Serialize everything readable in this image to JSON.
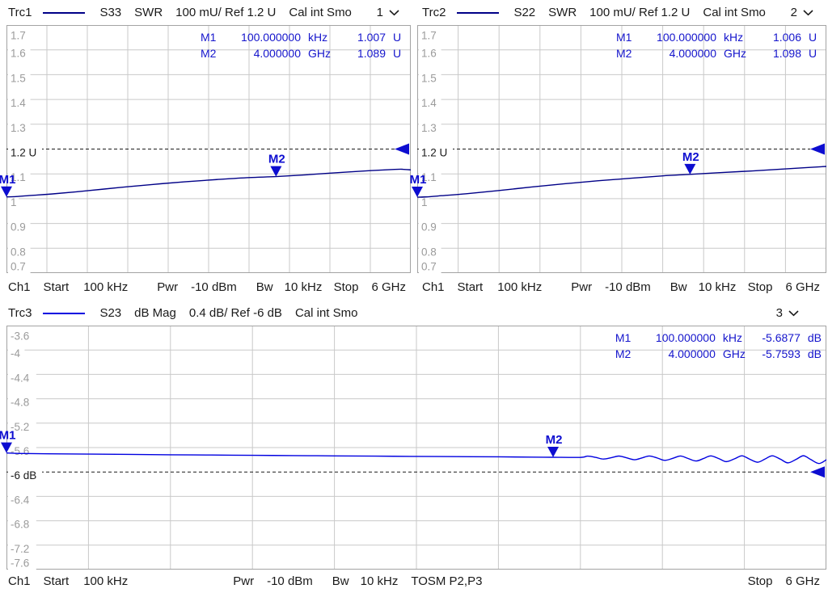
{
  "colors": {
    "grid": "#c9c9c9",
    "plot_border": "#a3a3a3",
    "tick_text": "#9b9b9b",
    "ref_text": "#1a1a1a",
    "marker": "#0d0dd0",
    "readout_text": "#1515cc",
    "header_text": "#1a1a1a"
  },
  "chart_data": [
    {
      "type": "line",
      "color": "#000087",
      "header": {
        "trace": "Trc1",
        "sparam": "S33",
        "format": "SWR",
        "scale": "100 mU/ Ref 1.2 U",
        "cal": "Cal int Smo",
        "channel": "1"
      },
      "axis": {
        "y_max": 1.7,
        "y_min": 0.7,
        "ref_value": 1.2,
        "ref_index": 5,
        "x_divisions": 10,
        "y_ticks": [
          "1.7",
          "1.6",
          "1.5",
          "1.4",
          "1.3",
          "1.2 U",
          "1.1",
          "1",
          "0.9",
          "0.8",
          "0.7"
        ]
      },
      "markers": [
        {
          "label": "M1",
          "freq": "100.000000",
          "freq_unit": "kHz",
          "value": "1.007",
          "value_unit": "U",
          "x": 0,
          "y": 1.007
        },
        {
          "label": "M2",
          "freq": "4.000000",
          "freq_unit": "GHz",
          "value": "1.089",
          "value_unit": "U",
          "x": 0.6667,
          "y": 1.089
        }
      ],
      "trace": {
        "x": [
          0,
          0.02,
          0.06,
          0.12,
          0.2,
          0.28,
          0.36,
          0.44,
          0.52,
          0.6,
          0.6667,
          0.74,
          0.82,
          0.9,
          0.96,
          0.98,
          1.0
        ],
        "y": [
          1.007,
          1.008,
          1.013,
          1.02,
          1.032,
          1.045,
          1.057,
          1.068,
          1.077,
          1.085,
          1.089,
          1.096,
          1.105,
          1.113,
          1.118,
          1.1185,
          1.116
        ]
      },
      "footer": {
        "ch": "Ch1",
        "start_label": "Start",
        "start": "100 kHz",
        "pwr_label": "Pwr",
        "pwr": "-10 dBm",
        "bw_label": "Bw",
        "bw": "10 kHz",
        "stop_label": "Stop",
        "stop": "6 GHz"
      }
    },
    {
      "type": "line",
      "color": "#000087",
      "header": {
        "trace": "Trc2",
        "sparam": "S22",
        "format": "SWR",
        "scale": "100 mU/ Ref 1.2 U",
        "cal": "Cal int Smo",
        "channel": "2"
      },
      "axis": {
        "y_max": 1.7,
        "y_min": 0.7,
        "ref_value": 1.2,
        "ref_index": 5,
        "x_divisions": 10,
        "y_ticks": [
          "1.7",
          "1.6",
          "1.5",
          "1.4",
          "1.3",
          "1.2 U",
          "1.1",
          "1",
          "0.9",
          "0.8",
          "0.7"
        ]
      },
      "markers": [
        {
          "label": "M1",
          "freq": "100.000000",
          "freq_unit": "kHz",
          "value": "1.006",
          "value_unit": "U",
          "x": 0,
          "y": 1.006
        },
        {
          "label": "M2",
          "freq": "4.000000",
          "freq_unit": "GHz",
          "value": "1.098",
          "value_unit": "U",
          "x": 0.6667,
          "y": 1.098
        }
      ],
      "trace": {
        "x": [
          0,
          0.02,
          0.06,
          0.12,
          0.2,
          0.28,
          0.36,
          0.44,
          0.52,
          0.6,
          0.6667,
          0.74,
          0.82,
          0.9,
          0.96,
          1.0
        ],
        "y": [
          1.006,
          1.007,
          1.012,
          1.02,
          1.033,
          1.047,
          1.06,
          1.072,
          1.082,
          1.092,
          1.098,
          1.105,
          1.112,
          1.12,
          1.126,
          1.13
        ]
      },
      "footer": {
        "ch": "Ch1",
        "start_label": "Start",
        "start": "100 kHz",
        "pwr_label": "Pwr",
        "pwr": "-10 dBm",
        "bw_label": "Bw",
        "bw": "10 kHz",
        "stop_label": "Stop",
        "stop": "6 GHz"
      }
    },
    {
      "type": "line",
      "color": "#0000e0",
      "header": {
        "trace": "Trc3",
        "sparam": "S23",
        "format": "dB Mag",
        "scale": "0.4 dB/ Ref -6 dB",
        "cal": "Cal int Smo",
        "channel": "3"
      },
      "axis": {
        "y_max": -3.6,
        "y_min": -7.6,
        "ref_value": -6,
        "ref_index": 6,
        "x_divisions": 10,
        "y_ticks": [
          "-3.6",
          "-4",
          "-4.4",
          "-4.8",
          "-5.2",
          "-5.6",
          "-6 dB",
          "-6.4",
          "-6.8",
          "-7.2",
          "-7.6"
        ]
      },
      "markers": [
        {
          "label": "M1",
          "freq": "100.000000",
          "freq_unit": "kHz",
          "value": "-5.6877",
          "value_unit": "dB",
          "x": 0,
          "y": -5.6877
        },
        {
          "label": "M2",
          "freq": "4.000000",
          "freq_unit": "GHz",
          "value": "-5.7593",
          "value_unit": "dB",
          "x": 0.6667,
          "y": -5.7593
        }
      ],
      "trace": {
        "x": [
          0,
          0.02,
          0.05,
          0.1,
          0.15,
          0.2,
          0.25,
          0.3,
          0.35,
          0.4,
          0.45,
          0.5,
          0.55,
          0.6,
          0.64,
          0.6667,
          0.7,
          0.709,
          0.719,
          0.728,
          0.738,
          0.747,
          0.756,
          0.766,
          0.775,
          0.784,
          0.794,
          0.803,
          0.813,
          0.822,
          0.831,
          0.841,
          0.85,
          0.859,
          0.869,
          0.878,
          0.888,
          0.897,
          0.906,
          0.916,
          0.925,
          0.934,
          0.944,
          0.953,
          0.963,
          0.972,
          0.981,
          0.991,
          1.0
        ],
        "y": [
          -5.688,
          -5.697,
          -5.702,
          -5.707,
          -5.712,
          -5.718,
          -5.722,
          -5.727,
          -5.731,
          -5.736,
          -5.74,
          -5.745,
          -5.748,
          -5.752,
          -5.756,
          -5.759,
          -5.761,
          -5.74,
          -5.762,
          -5.788,
          -5.765,
          -5.739,
          -5.767,
          -5.799,
          -5.77,
          -5.738,
          -5.772,
          -5.809,
          -5.775,
          -5.738,
          -5.777,
          -5.82,
          -5.78,
          -5.737,
          -5.782,
          -5.83,
          -5.784,
          -5.735,
          -5.787,
          -5.84,
          -5.789,
          -5.735,
          -5.791,
          -5.85,
          -5.794,
          -5.734,
          -5.796,
          -5.861,
          -5.799
        ]
      },
      "footer": {
        "ch": "Ch1",
        "start_label": "Start",
        "start": "100 kHz",
        "pwr_label": "Pwr",
        "pwr": "-10 dBm",
        "bw_label": "Bw",
        "bw": "10 kHz",
        "cal": "TOSM P2,P3",
        "stop_label": "Stop",
        "stop": "6 GHz"
      }
    }
  ]
}
